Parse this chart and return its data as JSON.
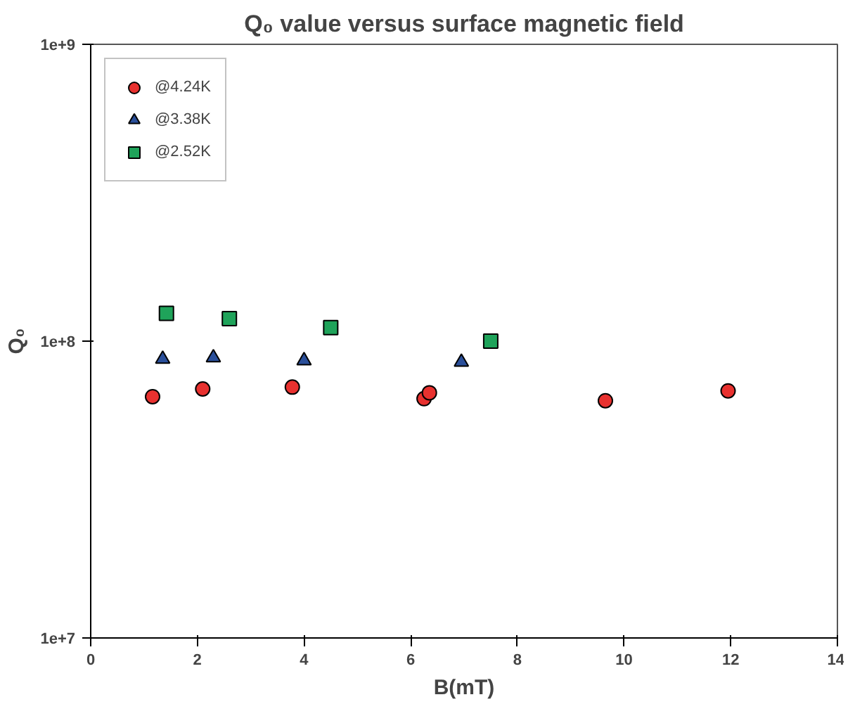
{
  "chart_data": {
    "type": "scatter",
    "title": "Q₀ value versus surface magnetic field",
    "xlabel": "B(mT)",
    "ylabel": "Q₀",
    "log": "y",
    "xlim": [
      0,
      14
    ],
    "xticks": [
      0,
      2,
      4,
      6,
      8,
      10,
      12,
      14
    ],
    "ylim": [
      10000000,
      1000000000
    ],
    "yticks": [
      {
        "value": 10000000,
        "label": "1e+7"
      },
      {
        "value": 100000000,
        "label": "1e+8"
      },
      {
        "value": 1000000000,
        "label": "1e+9"
      }
    ],
    "grid": false,
    "legend": "top left",
    "series": [
      {
        "name": "@4.24K",
        "color": "#e8312f",
        "marker": "circle",
        "x": [
          1.16,
          2.1,
          3.78,
          6.25,
          6.35,
          9.65,
          11.95
        ],
        "values": [
          65000000,
          69000000,
          70000000,
          64000000,
          67000000,
          63000000,
          68000000
        ]
      },
      {
        "name": "@3.38K",
        "color": "#2a4f9a",
        "marker": "triangle",
        "x": [
          1.35,
          2.3,
          4.0,
          6.95
        ],
        "values": [
          87000000,
          88000000,
          86000000,
          85000000
        ]
      },
      {
        "name": "@2.52K",
        "color": "#1fa35a",
        "marker": "square",
        "x": [
          1.42,
          2.6,
          4.5,
          7.5
        ],
        "values": [
          124000000,
          119000000,
          111000000,
          100000000
        ]
      }
    ]
  }
}
